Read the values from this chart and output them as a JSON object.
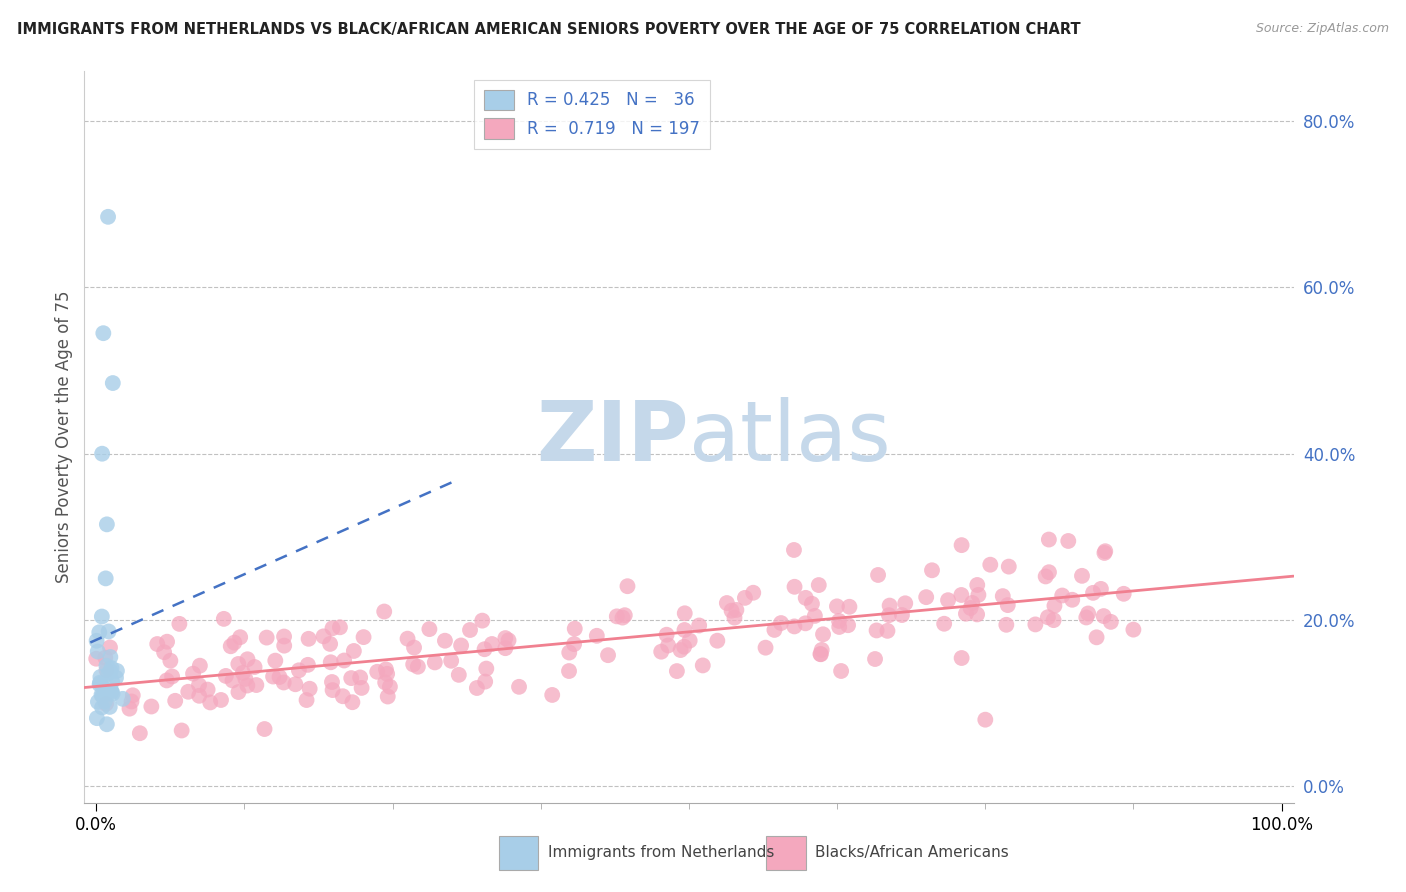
{
  "title": "IMMIGRANTS FROM NETHERLANDS VS BLACK/AFRICAN AMERICAN SENIORS POVERTY OVER THE AGE OF 75 CORRELATION CHART",
  "source": "Source: ZipAtlas.com",
  "ylabel": "Seniors Poverty Over the Age of 75",
  "xlim": [
    -0.01,
    1.01
  ],
  "ylim": [
    -0.02,
    0.86
  ],
  "yticks": [
    0.0,
    0.2,
    0.4,
    0.6,
    0.8
  ],
  "ytick_labels": [
    "0.0%",
    "20.0%",
    "40.0%",
    "60.0%",
    "80.0%"
  ],
  "xtick_labels": [
    "0.0%",
    "100.0%"
  ],
  "color_blue": "#A8CEE8",
  "color_pink": "#F4A8BE",
  "color_blue_line": "#4472C4",
  "color_pink_line": "#F08090",
  "color_title": "#222222",
  "color_legend_text": "#4472C4",
  "color_ytick": "#4472C4",
  "watermark_zip": "ZIP",
  "watermark_atlas": "atlas",
  "watermark_color": "#C5D8EA",
  "background": "#FFFFFF",
  "grid_color": "#BBBBBB",
  "R_blue": 0.425,
  "N_blue": 36,
  "R_pink": 0.719,
  "N_pink": 197,
  "legend_blue_text": "R = 0.425   N =   36",
  "legend_pink_text": "R =  0.719   N = 197",
  "bottom_label_blue": "Immigrants from Netherlands",
  "bottom_label_pink": "Blacks/African Americans"
}
